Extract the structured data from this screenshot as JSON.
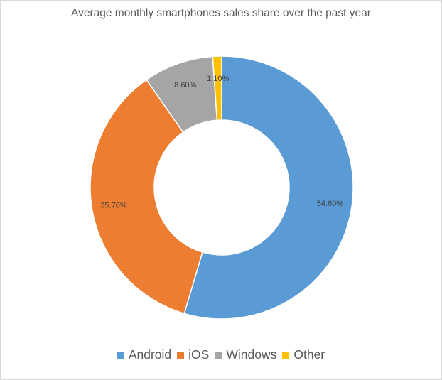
{
  "chart_data": {
    "type": "pie",
    "variant": "donut",
    "title": "Average monthly smartphones sales share over the past year",
    "categories": [
      "Android",
      "iOS",
      "Windows",
      "Other"
    ],
    "values": [
      54.6,
      35.7,
      8.6,
      1.1
    ],
    "labels": [
      "54.60%",
      "35.70%",
      "8.60%",
      "1.10%"
    ],
    "colors": [
      "#5B9BD5",
      "#ED7D31",
      "#A5A5A5",
      "#FFC000"
    ],
    "legend_position": "bottom",
    "unit": "%"
  }
}
